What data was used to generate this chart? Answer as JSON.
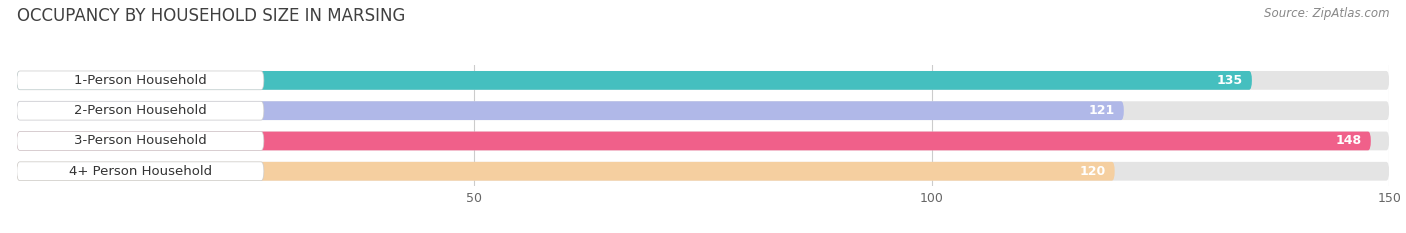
{
  "title": "OCCUPANCY BY HOUSEHOLD SIZE IN MARSING",
  "source": "Source: ZipAtlas.com",
  "categories": [
    "1-Person Household",
    "2-Person Household",
    "3-Person Household",
    "4+ Person Household"
  ],
  "values": [
    135,
    121,
    148,
    120
  ],
  "bar_colors": [
    "#45bfbf",
    "#b0b8e8",
    "#f0608a",
    "#f5cfa0"
  ],
  "background_color": "#ffffff",
  "bar_bg_color": "#e8e8e8",
  "xlim": [
    0,
    150
  ],
  "xticks": [
    50,
    100,
    150
  ],
  "title_fontsize": 12,
  "label_fontsize": 9.5,
  "value_fontsize": 9,
  "source_fontsize": 8.5
}
